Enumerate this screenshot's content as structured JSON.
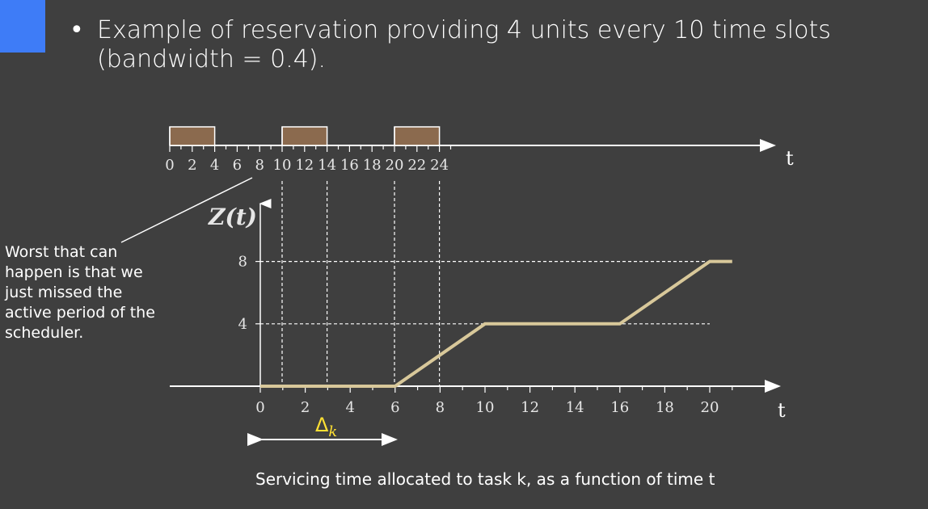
{
  "slide": {
    "bullet": "•",
    "text_line1": "Example of reservation providing 4 units every 10 time slots",
    "text_line2": "(bandwidth = 0.4).",
    "note_lines": [
      "Worst that can",
      "happen is that we",
      "just missed the",
      "active period of the",
      "scheduler."
    ],
    "caption": "Servicing time allocated to task k, as a function of time t",
    "accent_color": "#3e7cf7"
  },
  "timeline": {
    "ticks": [
      "0",
      "2",
      "4",
      "6",
      "8",
      "10",
      "12",
      "14",
      "16",
      "18",
      "20",
      "22",
      "24"
    ],
    "axis_label": "t",
    "active_periods": [
      [
        0,
        4
      ],
      [
        10,
        14
      ],
      [
        20,
        24
      ]
    ],
    "block_color": "#8b6a4e"
  },
  "graph": {
    "ylabel": "Z(t)",
    "y_ticks": [
      "4",
      "8"
    ],
    "x_ticks": [
      "0",
      "2",
      "4",
      "6",
      "8",
      "10",
      "12",
      "14",
      "16",
      "18",
      "20"
    ],
    "axis_label": "t",
    "delta_label": "Δ",
    "delta_sub": "k",
    "line_color": "#d8c89a"
  },
  "chart_data": {
    "type": "line",
    "ylabel": "Z(t)",
    "xlabel": "t",
    "series": [
      {
        "x": [
          0,
          6,
          10,
          16,
          20,
          21
        ],
        "y": [
          0,
          0,
          4,
          4,
          8,
          8
        ]
      }
    ],
    "y_ticks": [
      4,
      8
    ],
    "xlim": [
      0,
      21
    ],
    "ylim": [
      0,
      8
    ]
  }
}
